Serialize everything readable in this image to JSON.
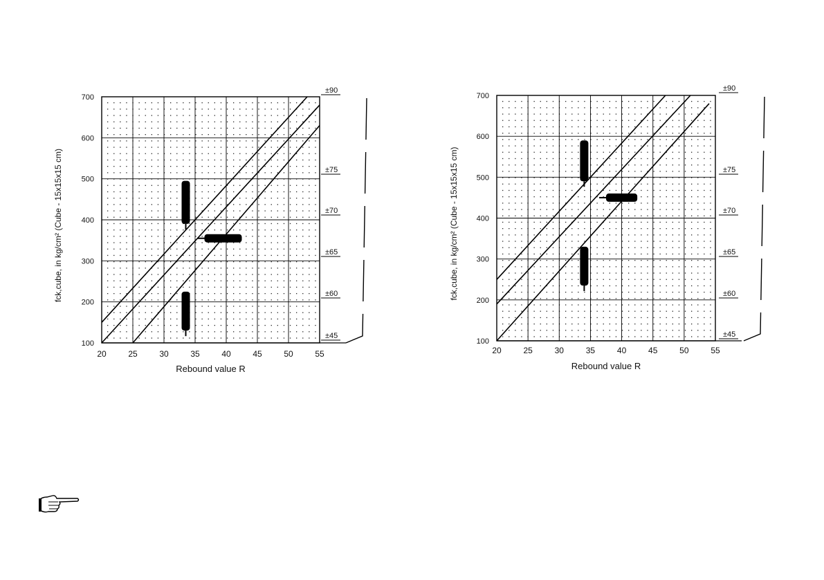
{
  "chart_data": [
    {
      "type": "line",
      "title": "",
      "xlabel": "Rebound value R",
      "ylabel": "fck,cube, in kg/cm² (Cube - 15x15x15 cm)",
      "xlim": [
        20,
        55
      ],
      "ylim": [
        100,
        700
      ],
      "xticks": [
        "20",
        "25",
        "30",
        "35",
        "40",
        "45",
        "50",
        "55"
      ],
      "yticks": [
        "100",
        "200",
        "300",
        "400",
        "500",
        "600",
        "700"
      ],
      "right_labels": [
        "±90",
        "±75",
        "±70",
        "±65",
        "±60",
        "±45"
      ],
      "grid": true,
      "series": [
        {
          "x": [
            20,
            53
          ],
          "y": [
            150,
            700
          ]
        },
        {
          "x": [
            20,
            55
          ],
          "y": [
            100,
            680
          ]
        },
        {
          "x": [
            25,
            55
          ],
          "y": [
            100,
            630
          ]
        }
      ],
      "markers": [
        {
          "orientation": "vertical",
          "x": 33.5,
          "y": [
            390,
            495
          ]
        },
        {
          "orientation": "horizontal",
          "x": [
            36.5,
            42.5
          ],
          "y": 355
        },
        {
          "orientation": "vertical",
          "x": 33.5,
          "y": [
            130,
            225
          ]
        }
      ]
    },
    {
      "type": "line",
      "title": "",
      "xlabel": "Rebound value R",
      "ylabel": "fck,cube, in kg/cm² (Cube - 15x15x15 cm)",
      "xlim": [
        20,
        55
      ],
      "ylim": [
        100,
        700
      ],
      "xticks": [
        "20",
        "25",
        "30",
        "35",
        "40",
        "45",
        "50",
        "55"
      ],
      "yticks": [
        "100",
        "200",
        "300",
        "400",
        "500",
        "600",
        "700"
      ],
      "right_labels": [
        "±90",
        "±75",
        "±70",
        "±65",
        "±60",
        "±45"
      ],
      "grid": true,
      "series": [
        {
          "x": [
            20,
            47
          ],
          "y": [
            250,
            700
          ]
        },
        {
          "x": [
            20,
            51
          ],
          "y": [
            190,
            700
          ]
        },
        {
          "x": [
            20,
            54
          ],
          "y": [
            100,
            680
          ]
        }
      ],
      "markers": [
        {
          "orientation": "vertical",
          "x": 34,
          "y": [
            490,
            590
          ]
        },
        {
          "orientation": "horizontal",
          "x": [
            37.5,
            42.5
          ],
          "y": 450
        },
        {
          "orientation": "vertical",
          "x": 34,
          "y": [
            235,
            330
          ]
        }
      ]
    }
  ],
  "icons": {
    "pointer": "pointing-hand-icon"
  }
}
